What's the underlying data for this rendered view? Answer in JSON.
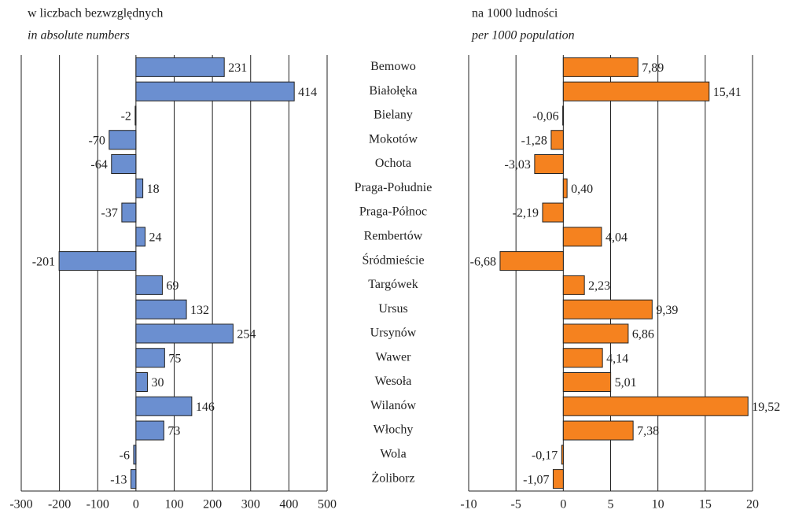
{
  "chart_data": [
    {
      "type": "bar",
      "orientation": "horizontal",
      "title": "w liczbach bezwzględnych",
      "subtitle": "in absolute numbers",
      "categories": [
        "Bemowo",
        "Białołęka",
        "Bielany",
        "Mokotów",
        "Ochota",
        "Praga-Południe",
        "Praga-Północ",
        "Rembertów",
        "Śródmieście",
        "Targówek",
        "Ursus",
        "Ursynów",
        "Wawer",
        "Wesoła",
        "Wilanów",
        "Włochy",
        "Wola",
        "Żoliborz"
      ],
      "values": [
        231,
        414,
        -2,
        -70,
        -64,
        18,
        -37,
        24,
        -201,
        69,
        132,
        254,
        75,
        30,
        146,
        73,
        -6,
        -13
      ],
      "color": "#6b8fd0",
      "xlim": [
        -300,
        500
      ],
      "xticks": [
        -300,
        -200,
        -100,
        0,
        100,
        200,
        300,
        400,
        500
      ],
      "grid": true
    },
    {
      "type": "bar",
      "orientation": "horizontal",
      "title": "na 1000 ludności",
      "subtitle": "per 1000 population",
      "values": [
        7.89,
        15.41,
        -0.06,
        -1.28,
        -3.03,
        0.4,
        -2.19,
        4.04,
        -6.68,
        2.23,
        9.39,
        6.86,
        4.14,
        5.01,
        19.52,
        7.38,
        -0.17,
        -1.07
      ],
      "value_labels": [
        "7,89",
        "15,41",
        "-0,06",
        "-1,28",
        "-3,03",
        "0,40",
        "-2,19",
        "4,04",
        "-6,68",
        "2,23",
        "9,39",
        "6,86",
        "4,14",
        "5,01",
        "19,52",
        "7,38",
        "-0,17",
        "-1,07"
      ],
      "color": "#f5821f",
      "xlim": [
        -10,
        20
      ],
      "xticks": [
        -10,
        -5,
        0,
        5,
        10,
        15,
        20
      ],
      "grid": true
    }
  ]
}
